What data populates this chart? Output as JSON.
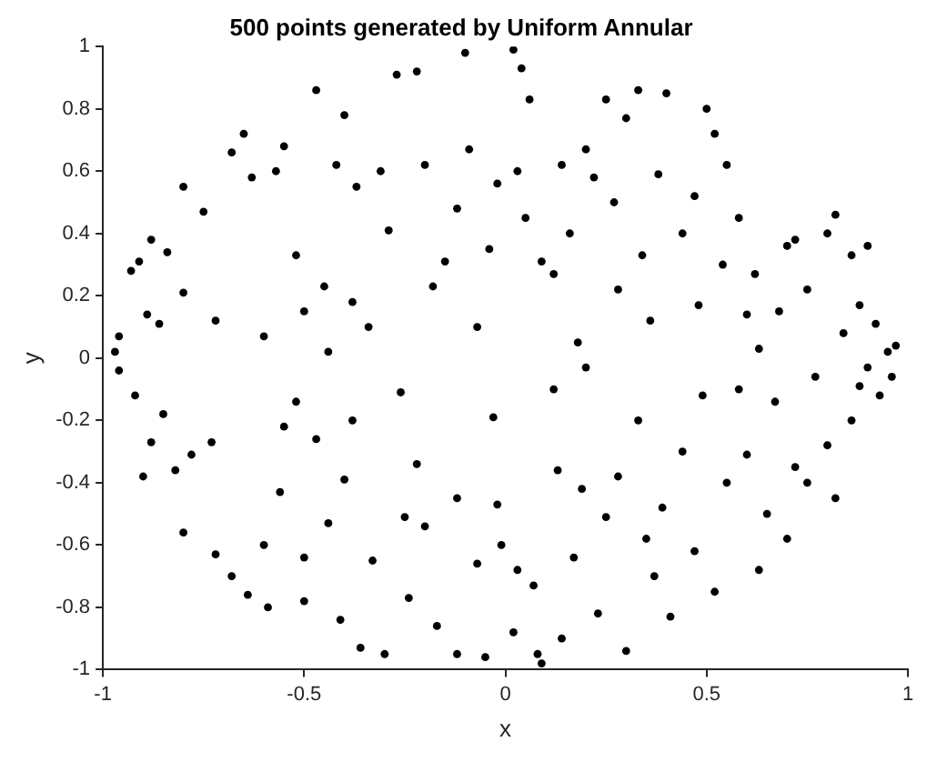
{
  "chart_data": {
    "type": "scatter",
    "title": "500 points generated by Uniform Annular",
    "xlabel": "x",
    "ylabel": "y",
    "xlim": [
      -1,
      1
    ],
    "xticks": [
      -1,
      -0.5,
      0,
      0.5,
      1
    ],
    "ylim": [
      -1,
      1
    ],
    "yticks": [
      -1,
      -0.8,
      -0.6,
      -0.4,
      -0.2,
      0,
      0.2,
      0.4,
      0.6,
      0.8,
      1
    ],
    "grid": false,
    "legend": false,
    "marker": "circle",
    "series": [
      {
        "color": "#000000",
        "x": [
          -0.97,
          -0.96,
          -0.93,
          -0.91,
          -0.89,
          -0.88,
          -0.86,
          -0.84,
          -0.8,
          -0.8,
          -0.75,
          -0.72,
          -0.68,
          -0.65,
          -0.63,
          -0.6,
          -0.57,
          -0.55,
          -0.52,
          -0.5,
          -0.47,
          -0.45,
          -0.44,
          -0.42,
          -0.4,
          -0.38,
          -0.37,
          -0.34,
          -0.31,
          -0.29,
          -0.27,
          -0.22,
          -0.2,
          -0.18,
          -0.15,
          -0.12,
          -0.1,
          -0.09,
          -0.07,
          -0.04,
          -0.02,
          0.02,
          0.04,
          0.06,
          0.03,
          0.05,
          0.09,
          0.12,
          0.14,
          0.16,
          0.18,
          0.2,
          0.22,
          0.25,
          0.27,
          0.28,
          0.3,
          0.33,
          0.34,
          0.36,
          0.38,
          0.4,
          0.44,
          0.47,
          0.48,
          0.5,
          0.52,
          0.54,
          0.55,
          0.58,
          0.6,
          0.62,
          0.63,
          0.68,
          0.7,
          0.72,
          0.75,
          0.8,
          0.82,
          0.84,
          0.86,
          0.88,
          0.9,
          0.92,
          0.95,
          0.97,
          -0.96,
          -0.92,
          -0.9,
          -0.88,
          -0.85,
          -0.82,
          -0.8,
          -0.78,
          -0.73,
          -0.72,
          -0.68,
          -0.64,
          -0.6,
          -0.59,
          -0.56,
          -0.55,
          -0.52,
          -0.5,
          -0.5,
          -0.47,
          -0.44,
          -0.41,
          -0.4,
          -0.38,
          -0.36,
          -0.33,
          -0.3,
          -0.26,
          -0.25,
          -0.24,
          -0.22,
          -0.2,
          -0.17,
          -0.12,
          -0.12,
          -0.07,
          -0.05,
          -0.03,
          -0.02,
          -0.01,
          0.02,
          0.03,
          0.07,
          0.08,
          0.09,
          0.12,
          0.13,
          0.14,
          0.17,
          0.19,
          0.2,
          0.23,
          0.25,
          0.28,
          0.3,
          0.33,
          0.35,
          0.37,
          0.39,
          0.41,
          0.44,
          0.47,
          0.49,
          0.52,
          0.55,
          0.58,
          0.6,
          0.63,
          0.65,
          0.67,
          0.7,
          0.72,
          0.75,
          0.77,
          0.8,
          0.82,
          0.86,
          0.88,
          0.9,
          0.93,
          0.96
        ],
        "values": [
          0.02,
          0.07,
          0.28,
          0.31,
          0.14,
          0.38,
          0.11,
          0.34,
          0.55,
          0.21,
          0.47,
          0.12,
          0.66,
          0.72,
          0.58,
          0.07,
          0.6,
          0.68,
          0.33,
          0.15,
          0.86,
          0.23,
          0.02,
          0.62,
          0.78,
          0.18,
          0.55,
          0.1,
          0.6,
          0.41,
          0.91,
          0.92,
          0.62,
          0.23,
          0.31,
          0.48,
          0.98,
          0.67,
          0.1,
          0.35,
          0.56,
          0.99,
          0.93,
          0.83,
          0.6,
          0.45,
          0.31,
          0.27,
          0.62,
          0.4,
          0.05,
          0.67,
          0.58,
          0.83,
          0.5,
          0.22,
          0.77,
          0.86,
          0.33,
          0.12,
          0.59,
          0.85,
          0.4,
          0.52,
          0.17,
          0.8,
          0.72,
          0.3,
          0.62,
          0.45,
          0.14,
          0.27,
          0.03,
          0.15,
          0.36,
          0.38,
          0.22,
          0.4,
          0.46,
          0.08,
          0.33,
          0.17,
          0.36,
          0.11,
          0.02,
          0.04,
          -0.04,
          -0.12,
          -0.38,
          -0.27,
          -0.18,
          -0.36,
          -0.56,
          -0.31,
          -0.27,
          -0.63,
          -0.7,
          -0.76,
          -0.6,
          -0.8,
          -0.43,
          -0.22,
          -0.14,
          -0.64,
          -0.78,
          -0.26,
          -0.53,
          -0.84,
          -0.39,
          -0.2,
          -0.93,
          -0.65,
          -0.95,
          -0.11,
          -0.51,
          -0.77,
          -0.34,
          -0.54,
          -0.86,
          -0.95,
          -0.45,
          -0.66,
          -0.96,
          -0.19,
          -0.47,
          -0.6,
          -0.88,
          -0.68,
          -0.73,
          -0.95,
          -0.98,
          -0.1,
          -0.36,
          -0.9,
          -0.64,
          -0.42,
          -0.03,
          -0.82,
          -0.51,
          -0.38,
          -0.94,
          -0.2,
          -0.58,
          -0.7,
          -0.48,
          -0.83,
          -0.3,
          -0.62,
          -0.12,
          -0.75,
          -0.4,
          -0.1,
          -0.31,
          -0.68,
          -0.5,
          -0.14,
          -0.58,
          -0.35,
          -0.4,
          -0.06,
          -0.28,
          -0.45,
          -0.2,
          -0.09,
          -0.03,
          -0.12,
          -0.06
        ]
      }
    ]
  }
}
